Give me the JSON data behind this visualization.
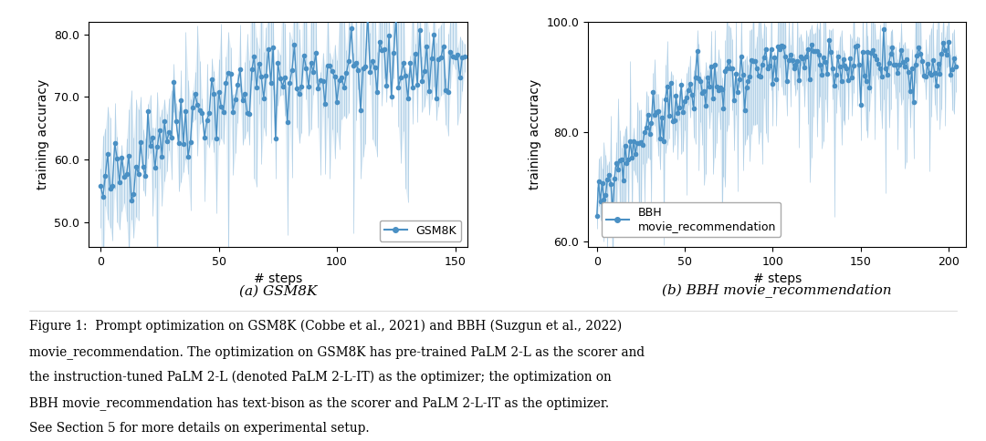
{
  "gsm8k": {
    "xlim": [
      -5,
      155
    ],
    "ylim": [
      46,
      82
    ],
    "yticks": [
      50.0,
      60.0,
      70.0,
      80.0
    ],
    "xticks": [
      0,
      50,
      100,
      150
    ],
    "xlabel": "# steps",
    "ylabel": "training accuracy",
    "legend_label": "GSM8K",
    "subplot_label": "(a) GSM8K",
    "n_points": 155,
    "seed": 42
  },
  "bbh": {
    "xlim": [
      -5,
      210
    ],
    "ylim": [
      59,
      100
    ],
    "yticks": [
      60.0,
      80.0,
      100.0
    ],
    "xticks": [
      0,
      50,
      100,
      150,
      200
    ],
    "xlabel": "# steps",
    "ylabel": "training accuracy",
    "legend_label": "BBH\nmovie_recommendation",
    "subplot_label": "(b) BBH movie_recommendation",
    "n_points": 205,
    "seed": 99
  },
  "line_color": "#4a90c4",
  "fill_color": "#c8dff0",
  "marker": "o",
  "markersize": 3.0,
  "linewidth": 1.0,
  "caption_text": [
    [
      "Figure 1:",
      false,
      true
    ],
    [
      "  Prompt optimization on GSM8K (Cobbe et al., 2021) and BBH (Suzgun et al., 2022)\nmovie_recommendation. The optimization on GSM8K has pre-trained ",
      false,
      false
    ],
    [
      "PaLM 2-L",
      true,
      false
    ],
    [
      " as the scorer and\nthe instruction-tuned ",
      false,
      false
    ],
    [
      "PaLM 2-L",
      true,
      false
    ],
    [
      " (denoted ",
      false,
      false
    ],
    [
      "PaLM 2-L-IT",
      true,
      false
    ],
    [
      ") as the optimizer; the optimization on\nBBH movie_recommendation has ",
      false,
      false
    ],
    [
      "text-bison",
      true,
      false
    ],
    [
      " as the scorer and ",
      false,
      false
    ],
    [
      "PaLM 2-L-IT",
      true,
      false
    ],
    [
      " as the optimizer.\nSee Section 5 for more details on experimental setup.",
      false,
      false
    ]
  ]
}
